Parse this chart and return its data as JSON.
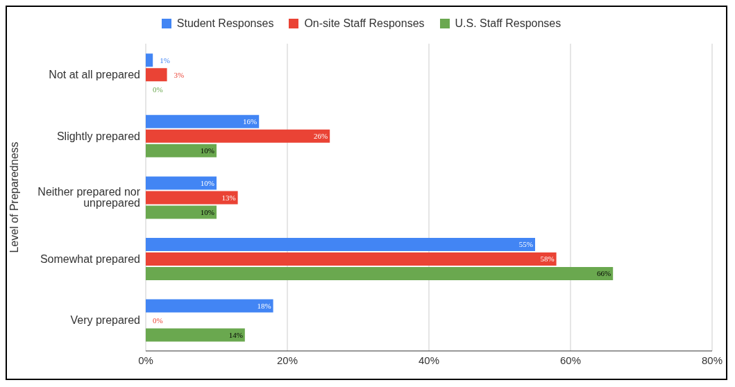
{
  "chart_data": {
    "type": "bar",
    "orientation": "horizontal",
    "ylabel": "Level of Preparedness",
    "categories": [
      "Not at all prepared",
      "Slightly prepared",
      "Neither prepared nor unprepared",
      "Somewhat prepared",
      "Very prepared"
    ],
    "series": [
      {
        "name": "Student Responses",
        "color": "#4285f4",
        "values": [
          1,
          16,
          10,
          55,
          18
        ],
        "value_labels": [
          "1%",
          "16%",
          "10%",
          "55%",
          "18%"
        ]
      },
      {
        "name": "On-site Staff Responses",
        "color": "#ea4335",
        "values": [
          3,
          26,
          13,
          58,
          0
        ],
        "value_labels": [
          "3%",
          "26%",
          "13%",
          "58%",
          "0%"
        ]
      },
      {
        "name": "U.S. Staff Responses",
        "color": "#6aa84f",
        "values": [
          0,
          10,
          10,
          66,
          14
        ],
        "value_labels": [
          "0%",
          "10%",
          "10%",
          "66%",
          "14%"
        ]
      }
    ],
    "xlim": [
      0,
      80
    ],
    "xticks": [
      {
        "value": 0,
        "label": "0%"
      },
      {
        "value": 20,
        "label": "20%"
      },
      {
        "value": 40,
        "label": "40%"
      },
      {
        "value": 60,
        "label": "60%"
      },
      {
        "value": 80,
        "label": "80%"
      }
    ],
    "grid": "x",
    "legend": "top"
  }
}
